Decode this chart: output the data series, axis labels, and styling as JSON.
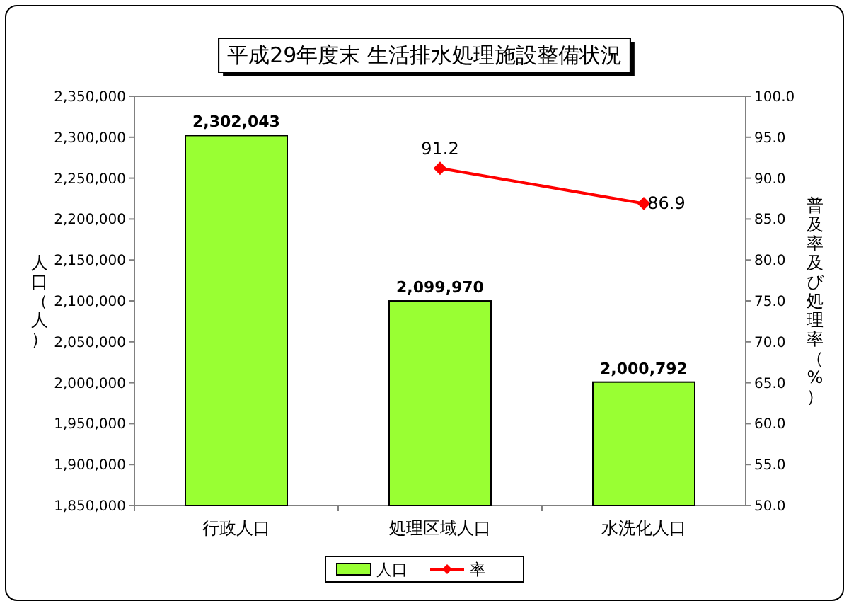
{
  "chart_data": {
    "type": "bar",
    "title": "平成29年度末 生活排水処理施設整備状況",
    "categories": [
      "行政人口",
      "処理区域人口",
      "水洗化人口"
    ],
    "series": [
      {
        "name": "人口",
        "color": "#99ff33",
        "values": [
          2302043,
          2099970,
          2000792
        ],
        "value_labels": [
          "2,302,043",
          "2,099,970",
          "2,000,792"
        ]
      },
      {
        "name": "率",
        "type": "line",
        "axis": "y2",
        "color": "#ff0000",
        "marker": "diamond",
        "values": [
          null,
          91.2,
          86.9
        ],
        "value_labels": [
          null,
          "91.2",
          "86.9"
        ]
      }
    ],
    "ylabel": "人口（人）",
    "y2label": "普及率及び処理率（%）",
    "ylim": [
      1850000,
      2350000
    ],
    "yticks": [
      {
        "value": 1850000,
        "label": "1,850,000"
      },
      {
        "value": 1900000,
        "label": "1,900,000"
      },
      {
        "value": 1950000,
        "label": "1,950,000"
      },
      {
        "value": 2000000,
        "label": "2,000,000"
      },
      {
        "value": 2050000,
        "label": "2,050,000"
      },
      {
        "value": 2100000,
        "label": "2,100,000"
      },
      {
        "value": 2150000,
        "label": "2,150,000"
      },
      {
        "value": 2200000,
        "label": "2,200,000"
      },
      {
        "value": 2250000,
        "label": "2,250,000"
      },
      {
        "value": 2300000,
        "label": "2,300,000"
      },
      {
        "value": 2350000,
        "label": "2,350,000"
      }
    ],
    "y2lim": [
      50,
      100
    ],
    "y2ticks": [
      {
        "value": 50,
        "label": "50.0"
      },
      {
        "value": 55,
        "label": "55.0"
      },
      {
        "value": 60,
        "label": "60.0"
      },
      {
        "value": 65,
        "label": "65.0"
      },
      {
        "value": 70,
        "label": "70.0"
      },
      {
        "value": 75,
        "label": "75.0"
      },
      {
        "value": 80,
        "label": "80.0"
      },
      {
        "value": 85,
        "label": "85.0"
      },
      {
        "value": 90,
        "label": "90.0"
      },
      {
        "value": 95,
        "label": "95.0"
      },
      {
        "value": 100,
        "label": "100.0"
      }
    ],
    "legend": "bottom",
    "grid": false
  }
}
